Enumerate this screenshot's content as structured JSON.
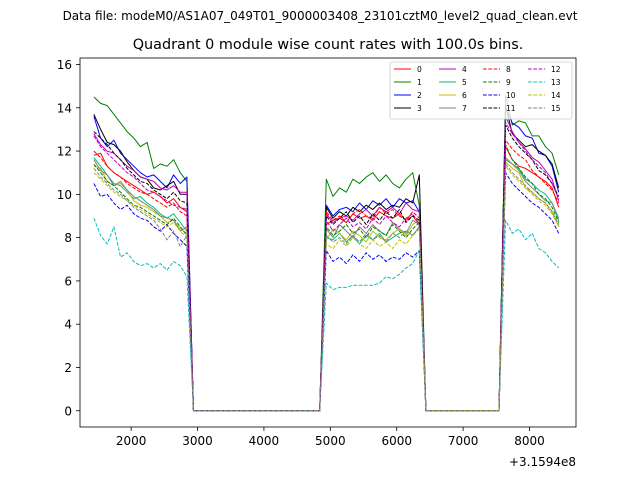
{
  "chart_data": {
    "type": "line",
    "suptitle": "Data file: modeM0/AS1A07_049T01_9000003408_23101cztM0_level2_quad_clean.evt",
    "title": "Quadrant 0 module wise count rates with 100.0s bins.",
    "xlabel": "",
    "ylabel": "",
    "x_offset_label": "+3.1594e8",
    "xlim": [
      1230,
      8700
    ],
    "ylim": [
      -0.75,
      16.3
    ],
    "xticks": [
      2000,
      3000,
      4000,
      5000,
      6000,
      7000,
      8000
    ],
    "yticks": [
      0,
      2,
      4,
      6,
      8,
      10,
      12,
      14,
      16
    ],
    "legend_position": "top-right",
    "legend_columns": 4,
    "x_segments": [
      [
        1440,
        2840
      ],
      [
        4940,
        6340
      ],
      [
        7640,
        8440
      ]
    ],
    "gaps": [
      [
        2940,
        4840
      ],
      [
        6440,
        7540
      ]
    ],
    "series": [
      {
        "name": "0",
        "color": "#ff0000",
        "dash": false,
        "values": [
          [
            11.8,
            11.9,
            11.3,
            11.0,
            10.8,
            10.6,
            10.4,
            10.2,
            10.0,
            10.1,
            9.9,
            9.6,
            9.8,
            9.4,
            9.2
          ],
          [
            8.6,
            8.8,
            8.9,
            8.7,
            9.1,
            8.9,
            9.0,
            8.8,
            9.2,
            9.0,
            8.9,
            9.1,
            8.8,
            9.0,
            8.6
          ],
          [
            12.2,
            11.6,
            11.3,
            11.2,
            11.0,
            10.8,
            10.6,
            10.3,
            9.4
          ]
        ]
      },
      {
        "name": "1",
        "color": "#008000",
        "dash": false,
        "values": [
          [
            14.5,
            14.2,
            14.1,
            13.7,
            13.3,
            12.9,
            12.6,
            12.2,
            12.4,
            11.2,
            11.4,
            11.3,
            11.6,
            11.0,
            10.6
          ],
          [
            10.7,
            9.9,
            10.3,
            10.1,
            10.7,
            10.5,
            10.8,
            11.0,
            10.6,
            10.9,
            10.5,
            10.3,
            10.7,
            11.0,
            9.5
          ],
          [
            14.6,
            13.2,
            13.4,
            13.3,
            12.7,
            12.7,
            12.2,
            11.9,
            10.9
          ]
        ]
      },
      {
        "name": "2",
        "color": "#0000ff",
        "dash": false,
        "values": [
          [
            13.6,
            12.6,
            12.2,
            12.5,
            11.9,
            11.6,
            11.3,
            11.0,
            10.8,
            10.9,
            10.6,
            10.3,
            10.9,
            10.5,
            10.8
          ],
          [
            9.5,
            9.0,
            9.3,
            9.4,
            9.2,
            9.6,
            9.3,
            9.7,
            9.5,
            9.8,
            9.4,
            9.8,
            9.6,
            9.7,
            9.2
          ],
          [
            14.0,
            13.3,
            13.1,
            12.7,
            12.6,
            11.9,
            11.8,
            11.3,
            10.1
          ]
        ]
      },
      {
        "name": "3",
        "color": "#000000",
        "dash": false,
        "values": [
          [
            13.7,
            13.0,
            12.4,
            12.3,
            12.0,
            11.5,
            11.1,
            10.8,
            10.7,
            10.3,
            10.2,
            10.4,
            10.6,
            10.0,
            10.0
          ],
          [
            9.4,
            8.9,
            9.2,
            9.0,
            9.4,
            9.2,
            9.5,
            9.3,
            9.6,
            9.3,
            9.5,
            9.4,
            9.8,
            9.6,
            10.9
          ],
          [
            14.1,
            12.8,
            12.5,
            12.2,
            12.3,
            12.0,
            11.8,
            11.4,
            10.3
          ]
        ]
      },
      {
        "name": "4",
        "color": "#bf00bf",
        "dash": false,
        "values": [
          [
            12.8,
            12.3,
            12.0,
            11.9,
            11.6,
            11.3,
            11.1,
            10.8,
            10.7,
            10.6,
            10.3,
            10.2,
            10.4,
            10.1,
            10.1
          ],
          [
            9.1,
            8.7,
            8.9,
            9.0,
            8.8,
            9.1,
            9.3,
            9.0,
            9.4,
            9.2,
            9.4,
            9.1,
            9.6,
            9.3,
            9.2
          ],
          [
            13.6,
            12.9,
            12.4,
            12.1,
            11.7,
            11.5,
            11.1,
            10.7,
            9.7
          ]
        ]
      },
      {
        "name": "5",
        "color": "#00bf7f",
        "dash": false,
        "values": [
          [
            11.7,
            11.3,
            10.9,
            10.5,
            10.4,
            10.1,
            9.8,
            9.9,
            9.6,
            9.4,
            9.1,
            8.9,
            9.1,
            8.7,
            8.3
          ],
          [
            8.0,
            7.9,
            8.2,
            7.8,
            8.1,
            7.7,
            8.1,
            7.9,
            8.2,
            7.8,
            8.0,
            8.2,
            8.3,
            8.1,
            8.5
          ],
          [
            11.6,
            11.4,
            11.2,
            10.7,
            10.5,
            10.2,
            10.0,
            9.6,
            8.8
          ]
        ]
      },
      {
        "name": "6",
        "color": "#bfbf00",
        "dash": false,
        "values": [
          [
            11.3,
            11.2,
            10.6,
            10.4,
            10.5,
            10.2,
            9.7,
            9.5,
            9.4,
            9.2,
            9.0,
            8.7,
            8.8,
            8.4,
            8.2
          ],
          [
            7.9,
            8.4,
            8.2,
            7.9,
            8.3,
            8.1,
            7.8,
            8.3,
            8.0,
            7.9,
            8.2,
            8.4,
            8.1,
            8.6,
            8.8
          ],
          [
            11.5,
            11.2,
            11.0,
            10.3,
            10.1,
            9.8,
            9.6,
            9.2,
            8.5
          ]
        ]
      },
      {
        "name": "7",
        "color": "#808080",
        "dash": false,
        "values": [
          [
            11.6,
            11.1,
            10.9,
            10.4,
            10.6,
            10.2,
            9.9,
            9.7,
            9.5,
            9.3,
            9.0,
            8.9,
            8.8,
            8.3,
            8.5
          ],
          [
            8.4,
            8.0,
            8.6,
            8.3,
            8.0,
            8.5,
            8.2,
            8.6,
            8.3,
            8.1,
            8.7,
            8.4,
            8.2,
            8.8,
            8.6
          ],
          [
            11.7,
            11.4,
            11.1,
            10.6,
            10.3,
            10.0,
            9.7,
            9.6,
            8.9
          ]
        ]
      },
      {
        "name": "8",
        "color": "#ff0000",
        "dash": true,
        "values": [
          [
            12.0,
            11.7,
            11.3,
            11.0,
            10.8,
            10.5,
            10.3,
            10.1,
            10.0,
            9.8,
            9.6,
            9.4,
            9.6,
            9.2,
            9.0
          ],
          [
            9.2,
            8.8,
            9.0,
            8.7,
            9.1,
            9.3,
            9.0,
            8.9,
            9.4,
            9.1,
            9.3,
            9.0,
            8.8,
            9.2,
            8.9
          ],
          [
            12.5,
            12.1,
            11.8,
            11.6,
            11.1,
            10.8,
            10.5,
            10.2,
            9.6
          ]
        ]
      },
      {
        "name": "9",
        "color": "#008000",
        "dash": true,
        "values": [
          [
            11.4,
            11.0,
            10.6,
            10.4,
            10.1,
            9.8,
            9.5,
            9.4,
            9.2,
            9.0,
            8.8,
            8.6,
            8.9,
            8.5,
            8.1
          ],
          [
            8.5,
            8.1,
            8.3,
            8.6,
            8.2,
            8.4,
            8.0,
            8.5,
            8.3,
            8.1,
            8.6,
            8.3,
            8.0,
            8.4,
            8.7
          ],
          [
            12.3,
            11.6,
            11.2,
            10.8,
            10.5,
            10.0,
            9.8,
            9.4,
            8.7
          ]
        ]
      },
      {
        "name": "10",
        "color": "#0000ff",
        "dash": true,
        "values": [
          [
            10.5,
            9.9,
            10.0,
            9.6,
            9.3,
            9.5,
            9.1,
            8.9,
            8.8,
            8.5,
            8.3,
            8.6,
            8.2,
            7.9,
            7.6
          ],
          [
            7.4,
            6.9,
            7.1,
            6.8,
            7.2,
            6.9,
            7.3,
            7.0,
            7.2,
            6.9,
            7.1,
            7.0,
            7.3,
            7.1,
            7.4
          ],
          [
            11.0,
            10.5,
            10.2,
            9.9,
            9.6,
            9.4,
            9.1,
            8.8,
            8.2
          ]
        ]
      },
      {
        "name": "11",
        "color": "#000000",
        "dash": true,
        "values": [
          [
            12.9,
            12.6,
            12.3,
            11.9,
            11.6,
            11.2,
            10.9,
            10.6,
            10.5,
            10.2,
            10.0,
            9.8,
            10.1,
            9.7,
            9.6
          ],
          [
            9.0,
            8.6,
            8.9,
            9.2,
            8.7,
            9.0,
            8.6,
            9.1,
            8.8,
            9.2,
            8.9,
            9.3,
            8.7,
            9.0,
            8.8
          ],
          [
            13.2,
            12.6,
            12.2,
            11.9,
            11.6,
            11.1,
            10.9,
            10.5,
            9.9
          ]
        ]
      },
      {
        "name": "12",
        "color": "#bf00bf",
        "dash": true,
        "values": [
          [
            12.7,
            12.2,
            11.9,
            11.6,
            11.3,
            11.0,
            10.8,
            10.5,
            10.2,
            10.1,
            9.9,
            9.7,
            9.5,
            9.4,
            9.3
          ],
          [
            8.8,
            8.3,
            8.6,
            8.9,
            8.5,
            8.7,
            8.4,
            8.9,
            8.6,
            9.0,
            8.7,
            8.5,
            8.9,
            9.1,
            8.6
          ],
          [
            13.3,
            12.8,
            12.4,
            12.0,
            11.6,
            11.3,
            11.0,
            10.5,
            9.8
          ]
        ]
      },
      {
        "name": "13",
        "color": "#00bfbf",
        "dash": true,
        "values": [
          [
            8.9,
            8.1,
            7.7,
            8.5,
            7.1,
            7.3,
            6.9,
            6.7,
            6.8,
            6.6,
            6.8,
            6.5,
            6.9,
            6.7,
            6.2
          ],
          [
            5.9,
            5.6,
            5.7,
            5.7,
            5.8,
            5.8,
            5.8,
            5.8,
            5.9,
            6.2,
            6.1,
            6.3,
            6.6,
            6.8,
            7.4
          ],
          [
            8.8,
            8.2,
            8.4,
            7.9,
            8.2,
            7.5,
            7.3,
            6.9,
            6.6
          ]
        ]
      },
      {
        "name": "14",
        "color": "#bfbf00",
        "dash": true,
        "values": [
          [
            11.0,
            10.7,
            10.4,
            10.1,
            9.9,
            9.7,
            9.5,
            9.3,
            9.1,
            8.9,
            8.7,
            8.5,
            8.7,
            8.3,
            8.0
          ],
          [
            7.7,
            7.5,
            7.9,
            7.6,
            8.0,
            7.7,
            7.5,
            7.9,
            7.6,
            7.8,
            7.5,
            7.9,
            7.7,
            8.1,
            8.4
          ],
          [
            11.3,
            10.9,
            10.6,
            10.3,
            10.0,
            9.7,
            9.5,
            9.1,
            8.5
          ]
        ]
      },
      {
        "name": "15",
        "color": "#808080",
        "dash": true,
        "values": [
          [
            11.2,
            10.8,
            10.5,
            10.2,
            10.0,
            9.7,
            9.4,
            9.2,
            9.0,
            8.8,
            8.4,
            7.9,
            8.3,
            7.6,
            8.1
          ],
          [
            8.1,
            7.8,
            8.0,
            7.7,
            8.1,
            7.8,
            8.2,
            7.9,
            8.1,
            7.8,
            8.2,
            8.0,
            8.3,
            8.1,
            8.5
          ],
          [
            11.4,
            11.0,
            10.7,
            10.4,
            10.1,
            9.8,
            9.6,
            9.2,
            8.6
          ]
        ]
      }
    ]
  }
}
